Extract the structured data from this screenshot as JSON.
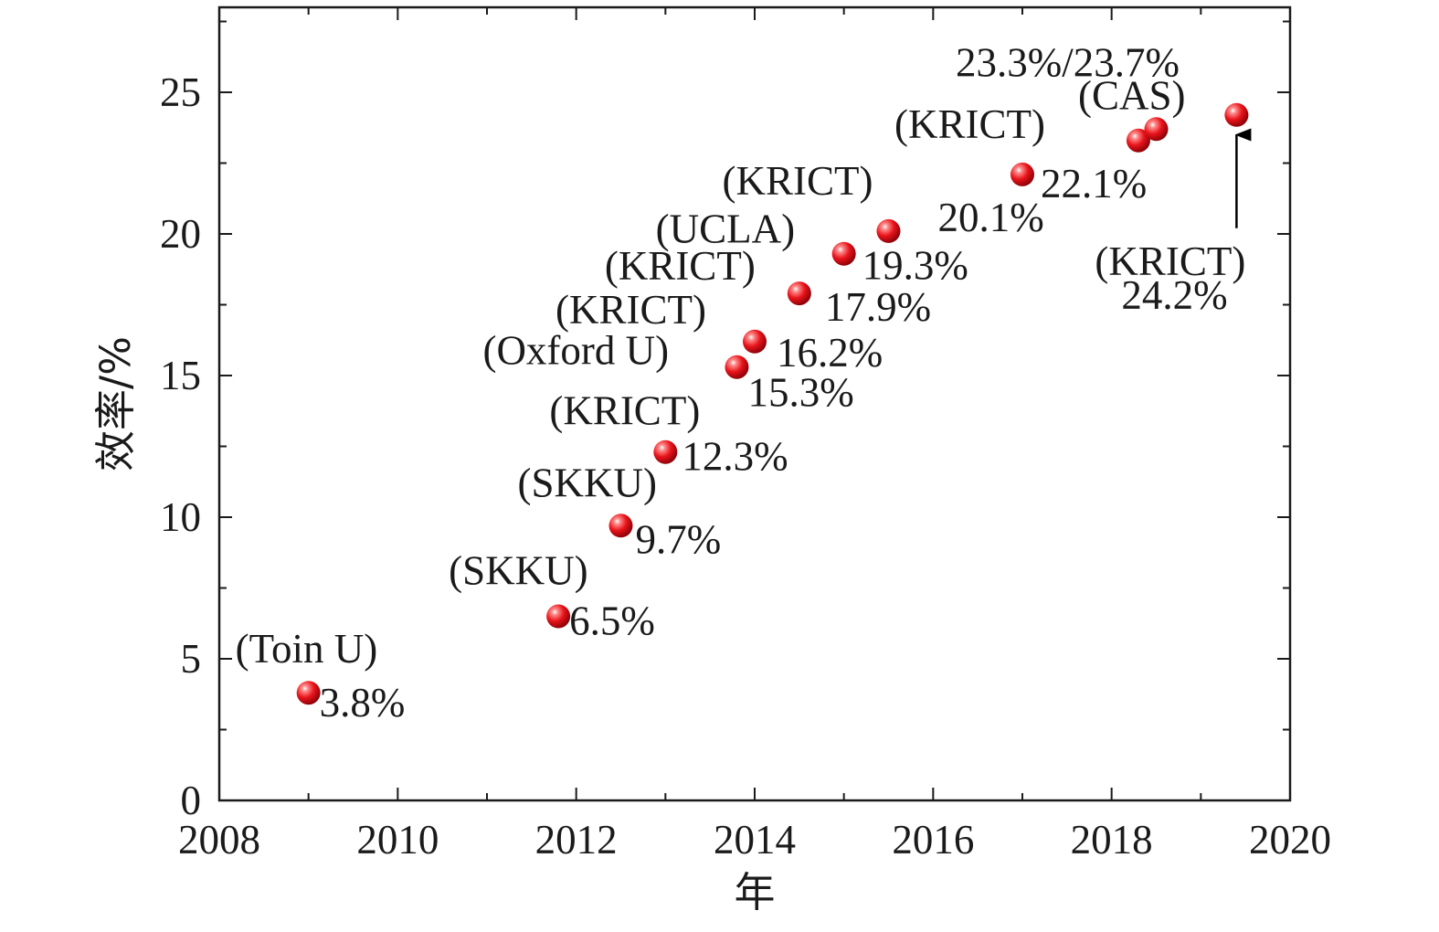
{
  "chart_data": {
    "type": "scatter",
    "xlabel": "年",
    "ylabel": "效率/%",
    "xlim": [
      2008,
      2020
    ],
    "ylim": [
      0,
      28
    ],
    "x_ticks": [
      2008,
      2010,
      2012,
      2014,
      2016,
      2018,
      2020
    ],
    "y_ticks": [
      0,
      5,
      10,
      15,
      20,
      25
    ],
    "grid": false,
    "marker_color": "#e8141b",
    "arrow": {
      "x": 2019.4,
      "y_from": 20.2,
      "y_to": 23.5
    },
    "points": [
      {
        "x": 2009.0,
        "y": 3.8,
        "value_label": "3.8%",
        "institution": "(Toin U)"
      },
      {
        "x": 2011.8,
        "y": 6.5,
        "value_label": "6.5%",
        "institution": "(SKKU)"
      },
      {
        "x": 2012.5,
        "y": 9.7,
        "value_label": "9.7%",
        "institution": "(SKKU)"
      },
      {
        "x": 2013.0,
        "y": 12.3,
        "value_label": "12.3%",
        "institution": "(KRICT)"
      },
      {
        "x": 2013.8,
        "y": 15.3,
        "value_label": "15.3%",
        "institution": "(Oxford U)"
      },
      {
        "x": 2014.0,
        "y": 16.2,
        "value_label": "16.2%",
        "institution": "(KRICT)"
      },
      {
        "x": 2014.5,
        "y": 17.9,
        "value_label": "17.9%",
        "institution": "(KRICT)"
      },
      {
        "x": 2015.0,
        "y": 19.3,
        "value_label": "19.3%",
        "institution": "(UCLA)"
      },
      {
        "x": 2015.5,
        "y": 20.1,
        "value_label": "20.1%",
        "institution": "(KRICT)"
      },
      {
        "x": 2017.0,
        "y": 22.1,
        "value_label": "22.1%",
        "institution": "(KRICT)"
      },
      {
        "x": 2018.3,
        "y": 23.3,
        "value_label": "23.3%/23.7%",
        "institution": "(CAS)"
      },
      {
        "x": 2018.5,
        "y": 23.7,
        "value_label": "",
        "institution": ""
      },
      {
        "x": 2019.4,
        "y": 24.2,
        "value_label": "24.2%",
        "institution": "(KRICT)"
      }
    ]
  }
}
